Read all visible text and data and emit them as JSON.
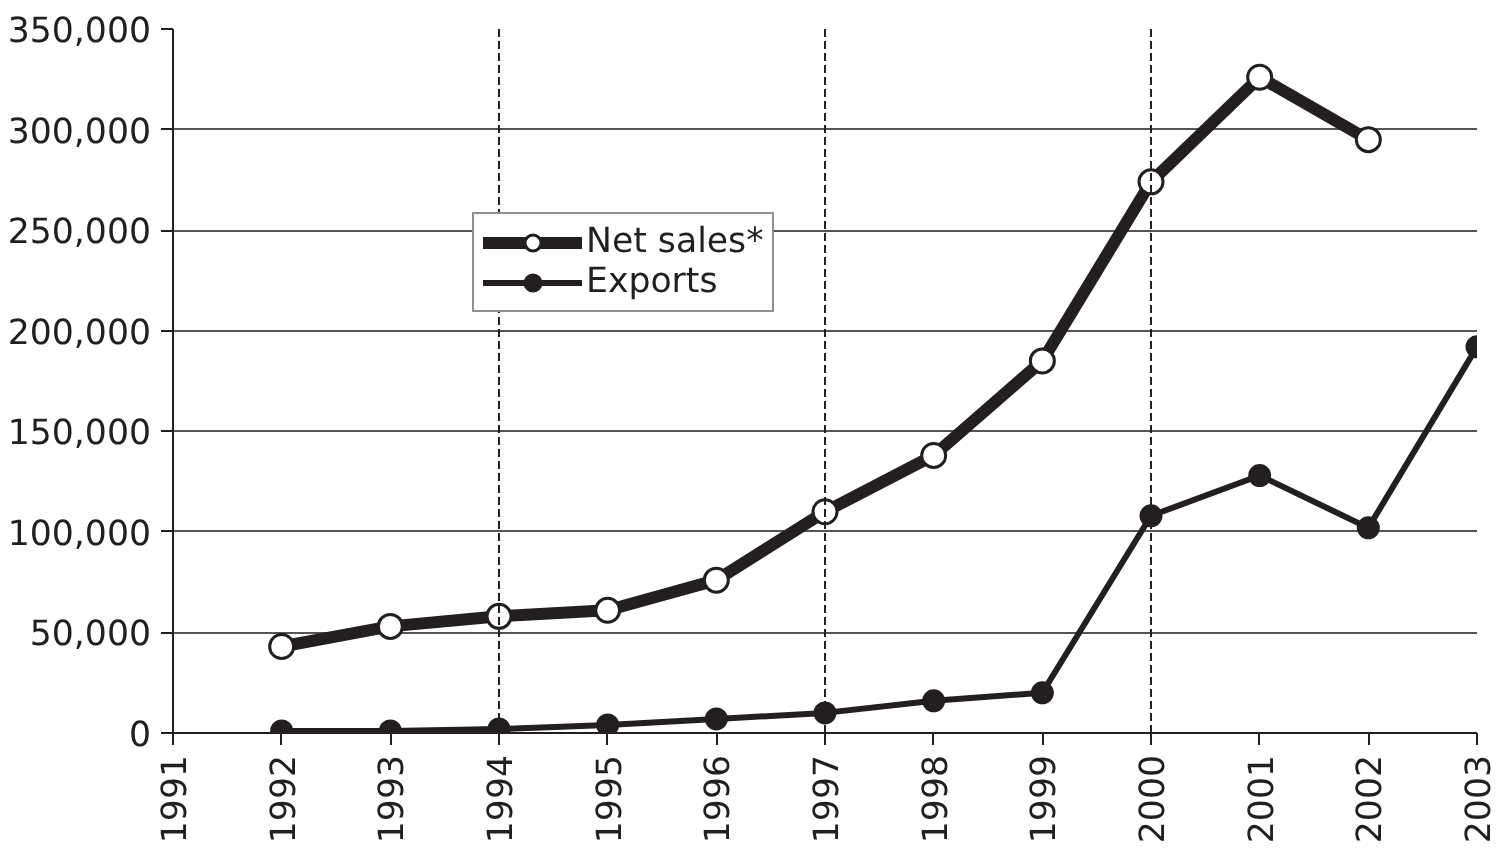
{
  "chart_data": {
    "type": "line",
    "x": [
      1992,
      1993,
      1994,
      1995,
      1996,
      1997,
      1998,
      1999,
      2000,
      2001,
      2002,
      2003
    ],
    "series": [
      {
        "name": "Net sales*",
        "color": "#231f20",
        "values": [
          43000,
          53000,
          58000,
          61000,
          76000,
          110000,
          138000,
          185000,
          274000,
          326000,
          295000,
          null
        ]
      },
      {
        "name": "Exports",
        "color": "#231f20",
        "values": [
          1000,
          1000,
          2000,
          4000,
          7000,
          10000,
          16000,
          20000,
          108000,
          128000,
          102000,
          192000
        ]
      }
    ],
    "xlim": [
      1991,
      2003
    ],
    "xticks": [
      1991,
      1992,
      1993,
      1994,
      1995,
      1996,
      1997,
      1998,
      1999,
      2000,
      2001,
      2002,
      2003
    ],
    "ylim": [
      0,
      350000
    ],
    "yticks": [
      {
        "value": 0,
        "label": "0"
      },
      {
        "value": 50000,
        "label": "50,000"
      },
      {
        "value": 100000,
        "label": "100,000"
      },
      {
        "value": 150000,
        "label": "150,000"
      },
      {
        "value": 200000,
        "label": "200,000"
      },
      {
        "value": 250000,
        "label": "250,000"
      },
      {
        "value": 300000,
        "label": "300,000"
      },
      {
        "value": 350000,
        "label": "350,000"
      }
    ],
    "grid": "y",
    "ref_lines": [
      {
        "axis": "x",
        "value": 1994,
        "line_style": "dashed",
        "color": "#231f20"
      },
      {
        "axis": "x",
        "value": 1997,
        "line_style": "dashed",
        "color": "#231f20"
      },
      {
        "axis": "x",
        "value": 2000,
        "line_style": "dashed",
        "color": "#231f20"
      }
    ],
    "legend": "top left",
    "marker": "circle",
    "line_style": "solid"
  }
}
